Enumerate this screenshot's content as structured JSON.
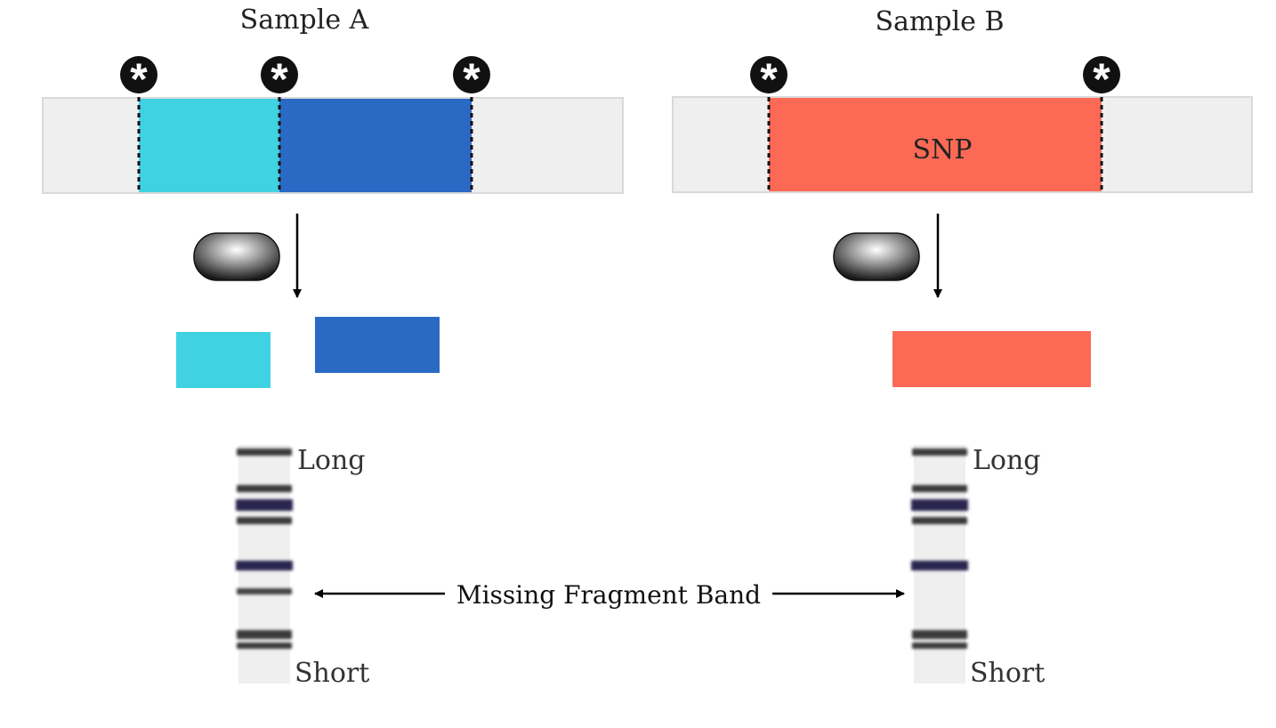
{
  "panels": [
    {
      "id": "a",
      "title": "Sample A",
      "segments": [
        {
          "label": "",
          "color": "#40D2E3"
        },
        {
          "label": "",
          "color": "#2B6AC4"
        }
      ],
      "fragments": [
        {
          "color": "#40D2E3"
        },
        {
          "color": "#2B6AC4"
        }
      ],
      "gel": {
        "top_label": "Long",
        "bottom_label": "Short"
      }
    },
    {
      "id": "b",
      "title": "Sample B",
      "segments": [
        {
          "label": "SNP",
          "color": "#FC6A55"
        }
      ],
      "fragments": [
        {
          "color": "#FC6A55"
        }
      ],
      "gel": {
        "top_label": "Long",
        "bottom_label": "Short"
      }
    }
  ],
  "annotation": "Missing Fragment Band",
  "restriction_site_icon": "asterisk-icon",
  "enzyme_icon": "enzyme-capsule-icon",
  "colors": {
    "dna_background": "#EFEFEF",
    "marker": "#111111",
    "gel_lane": "#EFEFEF",
    "band": "#3A3A3A",
    "band_highlight": "#2A2850"
  }
}
